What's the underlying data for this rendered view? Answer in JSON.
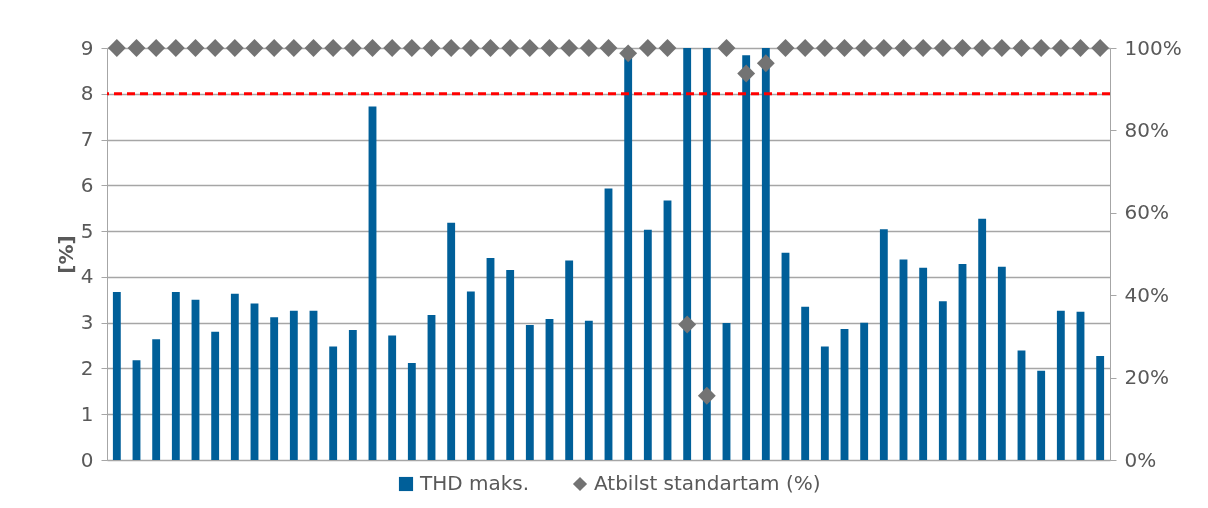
{
  "chart_data": {
    "type": "bar",
    "ylabel": "[%]",
    "categories": [
      null,
      null,
      null,
      null,
      null,
      null,
      null,
      null,
      null,
      null,
      null,
      null,
      null,
      null,
      null,
      null,
      null,
      null,
      null,
      null,
      null,
      null,
      null,
      null,
      null,
      null,
      null,
      null,
      null,
      null,
      null,
      null,
      null,
      null,
      null,
      null,
      null,
      null,
      null,
      null,
      null,
      null,
      null,
      null,
      null,
      null,
      null,
      null,
      null,
      null,
      null
    ],
    "series": [
      {
        "name": "THD maks.",
        "color": "#005f99",
        "values": [
          3.67,
          2.18,
          2.64,
          3.67,
          3.5,
          2.8,
          3.63,
          3.42,
          3.12,
          3.26,
          3.26,
          2.48,
          2.84,
          7.72,
          2.72,
          2.12,
          3.17,
          5.18,
          3.68,
          4.41,
          4.15,
          2.95,
          3.08,
          4.36,
          3.04,
          5.93,
          9,
          5.03,
          5.67,
          9,
          9,
          2.99,
          8.84,
          9,
          4.53,
          3.35,
          2.48,
          2.86,
          3.0,
          5.04,
          4.38,
          4.2,
          3.47,
          4.28,
          5.27,
          4.22,
          2.39,
          1.95,
          3.26,
          3.24,
          2.27
        ]
      },
      {
        "name": "Atbilst standartam (%)",
        "type": "scatter",
        "axis": "y2",
        "color": "#737373",
        "values": [
          100,
          100,
          100,
          100,
          100,
          100,
          100,
          100,
          100,
          100,
          100,
          100,
          100,
          100,
          100,
          100,
          100,
          100,
          100,
          100,
          100,
          100,
          100,
          100,
          100,
          100,
          98.7,
          100,
          100,
          32.9,
          15.6,
          100,
          93.8,
          96.3,
          100,
          100,
          100,
          100,
          100,
          100,
          100,
          100,
          100,
          100,
          100,
          100,
          100,
          100,
          100,
          100,
          100
        ]
      }
    ],
    "marker": "diamond",
    "ylim": [
      0,
      9
    ],
    "yticks": [
      0,
      1,
      2,
      3,
      4,
      5,
      6,
      7,
      8,
      9
    ],
    "y2lim": [
      0,
      100
    ],
    "y2ticks": [
      {
        "value": 0,
        "label": "0%"
      },
      {
        "value": 20,
        "label": "20%"
      },
      {
        "value": 40,
        "label": "40%"
      },
      {
        "value": 60,
        "label": "60%"
      },
      {
        "value": 80,
        "label": "80%"
      },
      {
        "value": 100,
        "label": "100%"
      }
    ],
    "ref_lines": [
      {
        "axis": "y",
        "value": 8,
        "color": "#ff0000",
        "line_style": "dashed"
      }
    ],
    "grid": "y",
    "legend": "bottom"
  }
}
